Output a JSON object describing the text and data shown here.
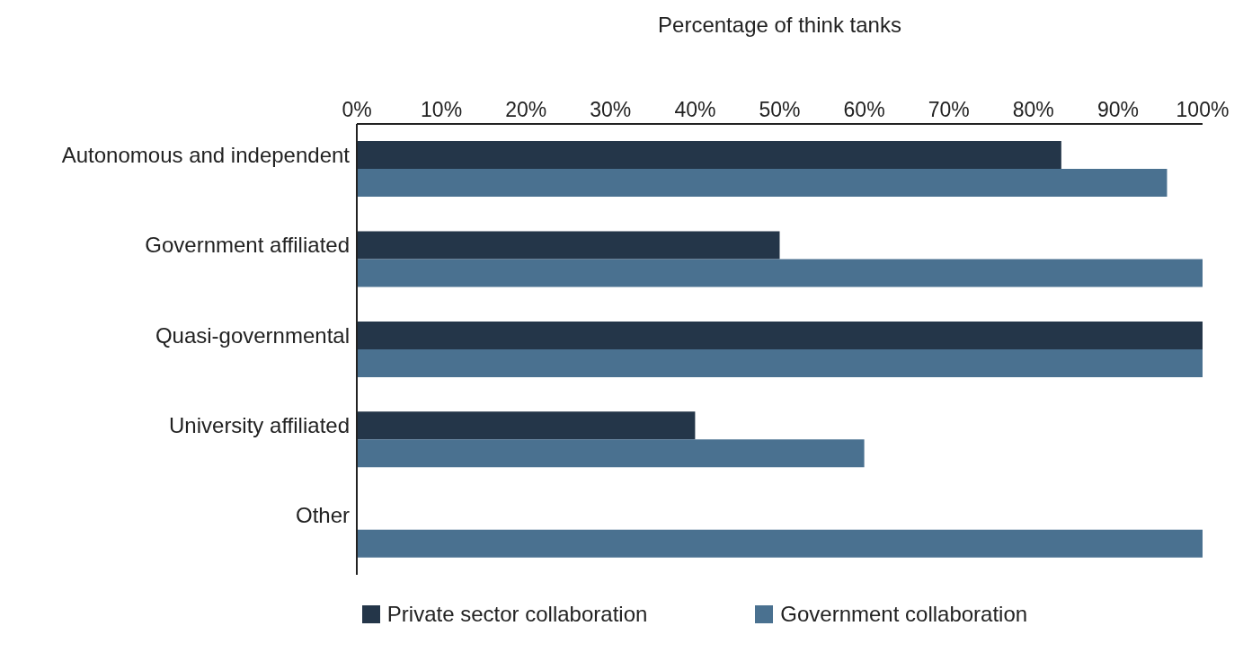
{
  "chart_data": {
    "type": "bar",
    "orientation": "horizontal",
    "xlabel": "Percentage of think tanks",
    "categories": [
      "Autonomous and independent",
      "Government affiliated",
      "Quasi-governmental",
      "University affiliated",
      "Other"
    ],
    "series": [
      {
        "name": "Private sector collaboration",
        "color": "#243649",
        "values": [
          83.3,
          50,
          100,
          40,
          0
        ]
      },
      {
        "name": "Government collaboration",
        "color": "#4a7190",
        "values": [
          95.8,
          100,
          100,
          60,
          100
        ]
      }
    ],
    "xlim": [
      0,
      100
    ],
    "xticks": [
      {
        "value": 0,
        "label": "0%"
      },
      {
        "value": 10,
        "label": "10%"
      },
      {
        "value": 20,
        "label": "20%"
      },
      {
        "value": 30,
        "label": "30%"
      },
      {
        "value": 40,
        "label": "40%"
      },
      {
        "value": 50,
        "label": "50%"
      },
      {
        "value": 60,
        "label": "60%"
      },
      {
        "value": 70,
        "label": "70%"
      },
      {
        "value": 80,
        "label": "80%"
      },
      {
        "value": 90,
        "label": "90%"
      },
      {
        "value": 100,
        "label": "100%"
      }
    ],
    "grid": false,
    "legend": "bottom"
  }
}
